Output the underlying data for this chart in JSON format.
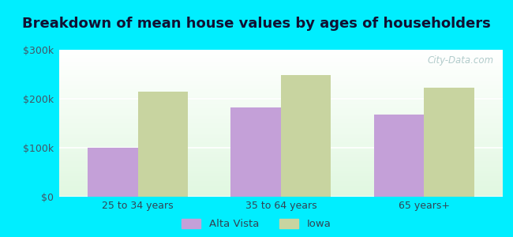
{
  "title": "Breakdown of mean house values by ages of householders",
  "categories": [
    "25 to 34 years",
    "35 to 64 years",
    "65 years+"
  ],
  "alta_vista_values": [
    100000,
    183000,
    168000
  ],
  "iowa_values": [
    215000,
    248000,
    222000
  ],
  "alta_vista_color": "#c4a0d8",
  "iowa_color": "#c8d4a0",
  "bar_width": 0.35,
  "ylim": [
    0,
    300000
  ],
  "yticks": [
    0,
    100000,
    200000,
    300000
  ],
  "ytick_labels": [
    "$0",
    "$100k",
    "$200k",
    "$300k"
  ],
  "background_color": "#00eeff",
  "title_fontsize": 13,
  "legend_labels": [
    "Alta Vista",
    "Iowa"
  ],
  "watermark": "City-Data.com"
}
